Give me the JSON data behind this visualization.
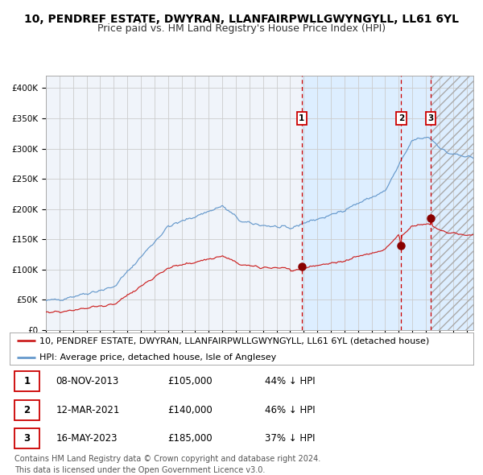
{
  "title": "10, PENDREF ESTATE, DWYRAN, LLANFAIRPWLLGWYNGYLL, LL61 6YL",
  "subtitle": "Price paid vs. HM Land Registry's House Price Index (HPI)",
  "ylim": [
    0,
    420000
  ],
  "yticks": [
    0,
    50000,
    100000,
    150000,
    200000,
    250000,
    300000,
    350000,
    400000
  ],
  "xlim_start": 1995.0,
  "xlim_end": 2026.5,
  "background_color": "#ffffff",
  "grid_color": "#cccccc",
  "hpi_line_color": "#6699cc",
  "price_line_color": "#cc2222",
  "shade_color": "#ddeeff",
  "marker_color": "#880000",
  "transaction_line_color": "#cc0000",
  "transactions": [
    {
      "num": 1,
      "date": "08-NOV-2013",
      "date_num": 2013.86,
      "price": 105000,
      "label": "1"
    },
    {
      "num": 2,
      "date": "12-MAR-2021",
      "date_num": 2021.19,
      "price": 140000,
      "label": "2"
    },
    {
      "num": 3,
      "date": "16-MAY-2023",
      "date_num": 2023.37,
      "price": 185000,
      "label": "3"
    }
  ],
  "legend_entries": [
    "10, PENDREF ESTATE, DWYRAN, LLANFAIRPWLLGWYNGYLL, LL61 6YL (detached house)",
    "HPI: Average price, detached house, Isle of Anglesey"
  ],
  "table_rows": [
    {
      "num": "1",
      "date": "08-NOV-2013",
      "price": "£105,000",
      "hpi": "44% ↓ HPI"
    },
    {
      "num": "2",
      "date": "12-MAR-2021",
      "price": "£140,000",
      "hpi": "46% ↓ HPI"
    },
    {
      "num": "3",
      "date": "16-MAY-2023",
      "price": "£185,000",
      "hpi": "37% ↓ HPI"
    }
  ],
  "footer": "Contains HM Land Registry data © Crown copyright and database right 2024.\nThis data is licensed under the Open Government Licence v3.0.",
  "title_fontsize": 10,
  "subtitle_fontsize": 9,
  "tick_fontsize": 7.5,
  "legend_fontsize": 8,
  "table_fontsize": 8.5,
  "footer_fontsize": 7
}
